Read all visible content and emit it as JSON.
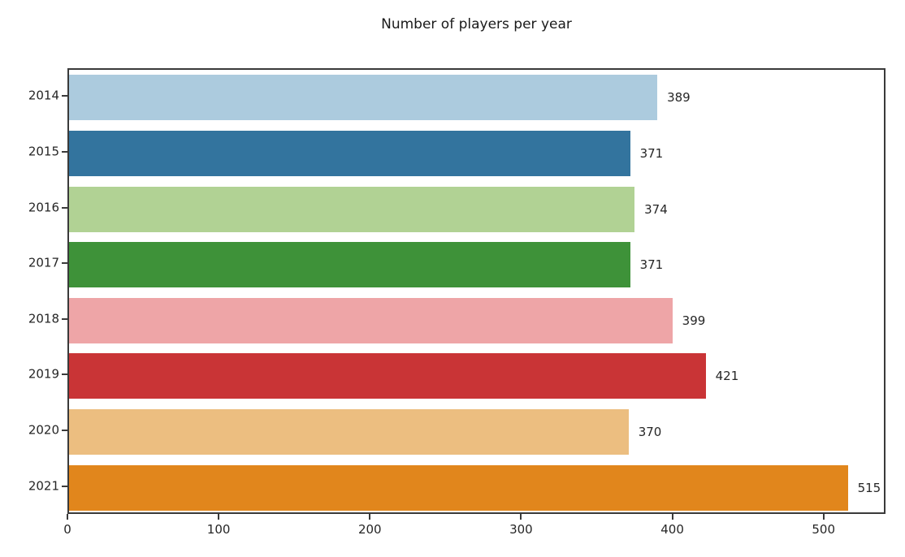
{
  "figure": {
    "background": "#ffffff",
    "text_color": "#262626",
    "spine_color": "#3a3a3a"
  },
  "chart_data": {
    "type": "bar",
    "orientation": "horizontal",
    "title": "Number of players per year",
    "xlabel": "",
    "ylabel": "",
    "categories": [
      "2014",
      "2015",
      "2016",
      "2017",
      "2018",
      "2019",
      "2020",
      "2021"
    ],
    "values": [
      389,
      371,
      374,
      371,
      399,
      421,
      370,
      515
    ],
    "bar_labels": [
      "389",
      "371",
      "374",
      "371",
      "399",
      "421",
      "370",
      "515"
    ],
    "bar_colors": [
      "#accbde",
      "#33749e",
      "#b1d294",
      "#3e9239",
      "#eea5a7",
      "#c93436",
      "#ecbe80",
      "#e1861c"
    ],
    "x_ticks": [
      0,
      100,
      200,
      300,
      400,
      500
    ],
    "x_tick_labels": [
      "0",
      "100",
      "200",
      "300",
      "400",
      "500"
    ],
    "xlim": [
      0,
      541
    ],
    "grid": false,
    "legend": null
  }
}
